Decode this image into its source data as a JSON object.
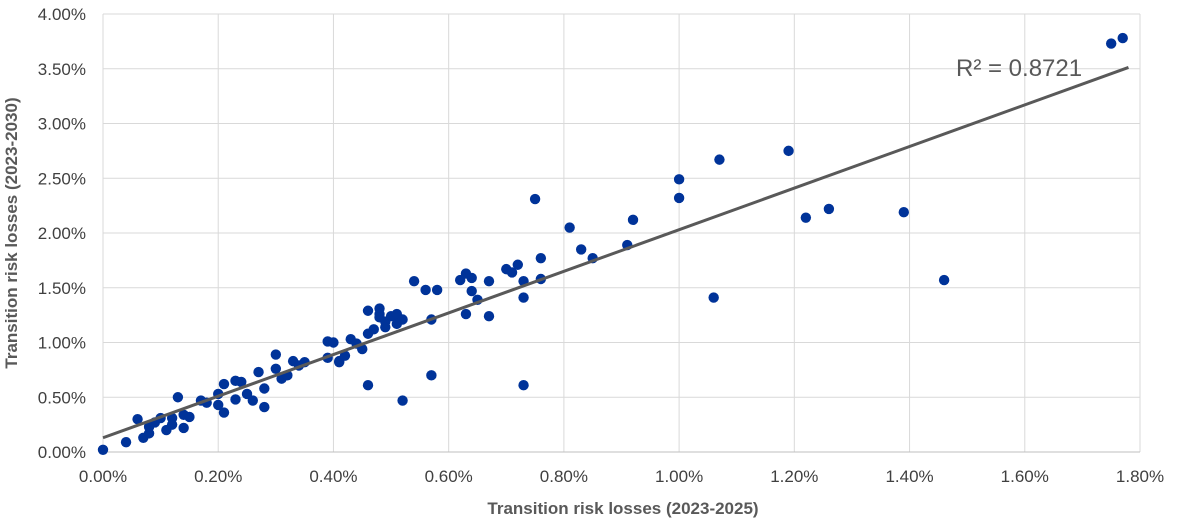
{
  "chart_data": {
    "type": "scatter",
    "title": "",
    "xlabel": "Transition risk losses (2023-2025)",
    "ylabel": "Transition risk losses (2023-2030)",
    "xlim": [
      0,
      1.8
    ],
    "ylim": [
      0,
      4.0
    ],
    "x_ticks": [
      "0.00%",
      "0.20%",
      "0.40%",
      "0.60%",
      "0.80%",
      "1.00%",
      "1.20%",
      "1.40%",
      "1.60%",
      "1.80%"
    ],
    "y_ticks": [
      "0.00%",
      "0.50%",
      "1.00%",
      "1.50%",
      "2.00%",
      "2.50%",
      "3.00%",
      "3.50%",
      "4.00%"
    ],
    "grid": "vertical and horizontal",
    "point_color": "#003399",
    "trendline_color": "#595959",
    "trendline": {
      "type": "linear",
      "slope": 1.9,
      "intercept": 0.13,
      "x_range": [
        0.0,
        1.78
      ]
    },
    "r2_label": "R² = 0.8721",
    "series": [
      {
        "values": [
          [
            0.0,
            0.02
          ],
          [
            0.04,
            0.09
          ],
          [
            0.06,
            0.3
          ],
          [
            0.07,
            0.13
          ],
          [
            0.08,
            0.17
          ],
          [
            0.08,
            0.23
          ],
          [
            0.09,
            0.27
          ],
          [
            0.1,
            0.31
          ],
          [
            0.11,
            0.2
          ],
          [
            0.12,
            0.31
          ],
          [
            0.12,
            0.25
          ],
          [
            0.13,
            0.5
          ],
          [
            0.14,
            0.34
          ],
          [
            0.14,
            0.22
          ],
          [
            0.15,
            0.32
          ],
          [
            0.17,
            0.47
          ],
          [
            0.18,
            0.45
          ],
          [
            0.2,
            0.53
          ],
          [
            0.2,
            0.43
          ],
          [
            0.21,
            0.62
          ],
          [
            0.21,
            0.36
          ],
          [
            0.23,
            0.65
          ],
          [
            0.23,
            0.48
          ],
          [
            0.24,
            0.64
          ],
          [
            0.25,
            0.53
          ],
          [
            0.26,
            0.47
          ],
          [
            0.27,
            0.73
          ],
          [
            0.28,
            0.41
          ],
          [
            0.28,
            0.58
          ],
          [
            0.3,
            0.89
          ],
          [
            0.3,
            0.76
          ],
          [
            0.31,
            0.67
          ],
          [
            0.32,
            0.7
          ],
          [
            0.33,
            0.83
          ],
          [
            0.34,
            0.79
          ],
          [
            0.35,
            0.82
          ],
          [
            0.39,
            1.01
          ],
          [
            0.39,
            0.86
          ],
          [
            0.4,
            1.0
          ],
          [
            0.41,
            0.82
          ],
          [
            0.41,
            0.83
          ],
          [
            0.42,
            0.88
          ],
          [
            0.43,
            1.03
          ],
          [
            0.44,
            0.99
          ],
          [
            0.45,
            0.94
          ],
          [
            0.46,
            1.29
          ],
          [
            0.46,
            1.08
          ],
          [
            0.46,
            0.61
          ],
          [
            0.47,
            1.12
          ],
          [
            0.48,
            1.31
          ],
          [
            0.48,
            1.26
          ],
          [
            0.48,
            1.23
          ],
          [
            0.49,
            1.19
          ],
          [
            0.49,
            1.14
          ],
          [
            0.5,
            1.24
          ],
          [
            0.51,
            1.26
          ],
          [
            0.51,
            1.17
          ],
          [
            0.52,
            1.21
          ],
          [
            0.52,
            0.47
          ],
          [
            0.54,
            1.56
          ],
          [
            0.56,
            1.48
          ],
          [
            0.57,
            1.21
          ],
          [
            0.57,
            0.7
          ],
          [
            0.58,
            1.48
          ],
          [
            0.62,
            1.57
          ],
          [
            0.63,
            1.26
          ],
          [
            0.63,
            1.63
          ],
          [
            0.64,
            1.59
          ],
          [
            0.64,
            1.47
          ],
          [
            0.65,
            1.39
          ],
          [
            0.67,
            1.56
          ],
          [
            0.67,
            1.24
          ],
          [
            0.7,
            1.67
          ],
          [
            0.71,
            1.64
          ],
          [
            0.72,
            1.71
          ],
          [
            0.73,
            1.56
          ],
          [
            0.73,
            1.41
          ],
          [
            0.73,
            0.61
          ],
          [
            0.75,
            2.31
          ],
          [
            0.76,
            1.77
          ],
          [
            0.76,
            1.58
          ],
          [
            0.81,
            2.05
          ],
          [
            0.83,
            1.85
          ],
          [
            0.85,
            1.77
          ],
          [
            0.91,
            1.89
          ],
          [
            0.92,
            2.12
          ],
          [
            1.0,
            2.32
          ],
          [
            1.0,
            2.49
          ],
          [
            1.06,
            1.41
          ],
          [
            1.07,
            2.67
          ],
          [
            1.19,
            2.75
          ],
          [
            1.22,
            2.14
          ],
          [
            1.26,
            2.22
          ],
          [
            1.39,
            2.19
          ],
          [
            1.46,
            1.57
          ],
          [
            1.75,
            3.73
          ],
          [
            1.77,
            3.78
          ]
        ]
      }
    ]
  }
}
